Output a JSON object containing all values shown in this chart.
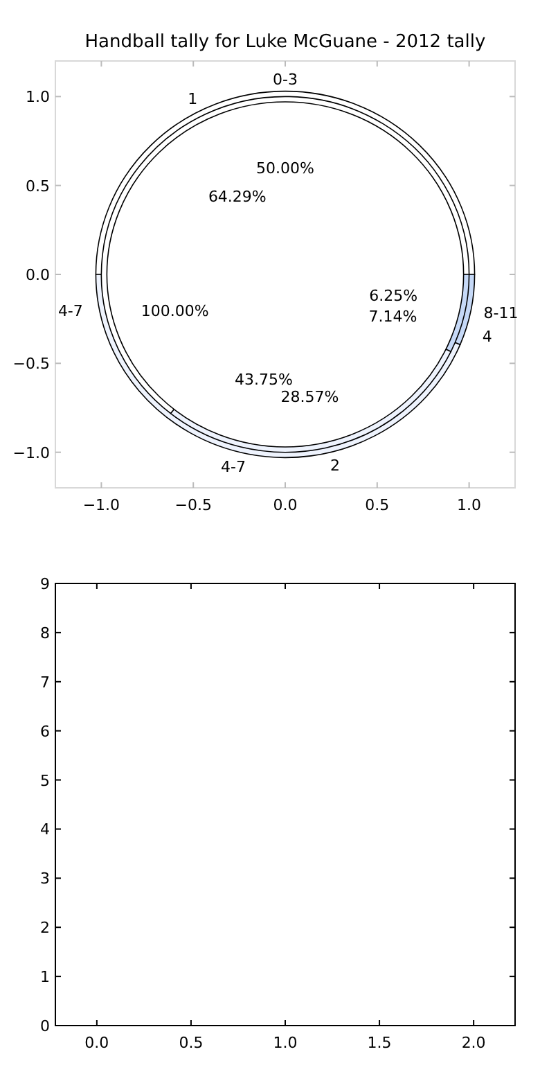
{
  "chart_data": [
    {
      "type": "scatter",
      "title": "Handball tally for Luke McGuane - 2012 tally",
      "xlim": [
        -1.25,
        1.25
      ],
      "ylim": [
        -1.2,
        1.2
      ],
      "xticks": [
        {
          "value": -1,
          "label": "−1.0"
        },
        {
          "value": -0.5,
          "label": "−0.5"
        },
        {
          "value": 0,
          "label": "0.0"
        },
        {
          "value": 0.5,
          "label": "0.5"
        },
        {
          "value": 1,
          "label": "1.0"
        }
      ],
      "yticks": [
        {
          "value": -1,
          "label": "−1.0"
        },
        {
          "value": -0.5,
          "label": "−0.5"
        },
        {
          "value": 0,
          "label": "0.0"
        },
        {
          "value": 0.5,
          "label": "0.5"
        },
        {
          "value": 1,
          "label": "1.0"
        }
      ]
    },
    {
      "type": "pie",
      "categories": [
        "0-3",
        "4-7",
        "8-11"
      ],
      "values": [
        50,
        43.75,
        6.25
      ],
      "colors": [
        "#ffffff",
        "#eef3fd",
        "#c6d9f7"
      ],
      "value_labels": [
        "50.00%",
        "43.75%",
        "6.25%"
      ]
    },
    {
      "type": "pie",
      "categories": [
        "1",
        "2",
        "4"
      ],
      "values": [
        64.29,
        28.57,
        7.14
      ],
      "colors": [
        "#ffffff",
        "#eef3fd",
        "#c6d9f7"
      ],
      "value_labels": [
        "64.29%",
        "28.57%",
        "7.14%"
      ]
    },
    {
      "type": "pie",
      "categories": [
        "4-7"
      ],
      "values": [
        100
      ],
      "colors": [
        "#ffffff"
      ],
      "value_labels": [
        "100.00%"
      ]
    },
    {
      "type": "scatter",
      "xlim": [
        -0.22,
        2.22
      ],
      "ylim": [
        0,
        9
      ],
      "xticks": [
        {
          "value": 0,
          "label": "0.0"
        },
        {
          "value": 0.5,
          "label": "0.5"
        },
        {
          "value": 1,
          "label": "1.0"
        },
        {
          "value": 1.5,
          "label": "1.5"
        },
        {
          "value": 2,
          "label": "2.0"
        }
      ],
      "yticks": [
        0,
        1,
        2,
        3,
        4,
        5,
        6,
        7,
        8,
        9
      ]
    }
  ]
}
